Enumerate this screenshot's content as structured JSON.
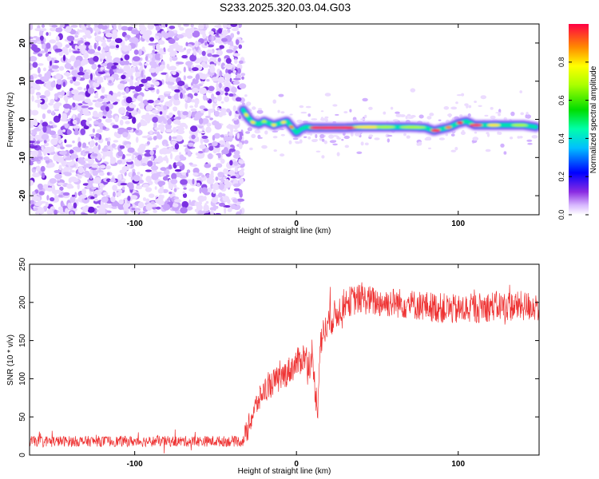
{
  "title": "S233.2025.320.03.04.G03",
  "chart_data": [
    {
      "type": "heatmap",
      "name": "spectrogram",
      "xlabel": "Height of straight line (km)",
      "ylabel": "Frequency (Hz)",
      "xlim": [
        -165,
        150
      ],
      "ylim": [
        -25,
        25
      ],
      "xticks": [
        -100,
        0,
        100
      ],
      "yticks": [
        -20,
        -10,
        0,
        10,
        20
      ],
      "noise_region_x": [
        -165,
        -33
      ],
      "signal_region_x": [
        -33,
        148
      ],
      "signal_track": {
        "x": [
          -33,
          -30,
          -27,
          -23,
          -20,
          -17,
          -14,
          -10,
          -6,
          -3,
          0,
          3,
          6,
          10,
          20,
          30,
          40,
          50,
          60,
          70,
          80,
          85,
          90,
          95,
          100,
          105,
          110,
          120,
          130,
          140,
          148
        ],
        "y": [
          2.5,
          0.5,
          -0.8,
          -1.2,
          -0.5,
          -1.0,
          -1.5,
          -1.0,
          -0.5,
          -2.0,
          -3.5,
          -2.5,
          -2.0,
          -2.2,
          -2.2,
          -2.2,
          -2.0,
          -2.0,
          -2.0,
          -2.0,
          -2.2,
          -3.0,
          -2.5,
          -2.0,
          -1.0,
          -0.5,
          -1.5,
          -1.5,
          -1.5,
          -1.5,
          -2.0
        ]
      },
      "colorbar": {
        "label": "Normalized spectral amplitude",
        "range": [
          0,
          1
        ],
        "ticks": [
          "0.0",
          "0.2",
          "0.4",
          "0.6",
          "0.8"
        ]
      }
    },
    {
      "type": "line",
      "name": "snr",
      "xlabel": "Height of straight line (km)",
      "ylabel": "SNR (10 * v/v)",
      "xlim": [
        -165,
        150
      ],
      "ylim": [
        0,
        250
      ],
      "xticks": [
        -100,
        0,
        100
      ],
      "yticks": [
        0,
        50,
        100,
        150,
        200,
        250
      ],
      "color": "#ee3333",
      "series_envelope": {
        "x": [
          -165,
          -35,
          -33,
          -25,
          -20,
          -15,
          -10,
          -5,
          0,
          5,
          10,
          12,
          13,
          14,
          15,
          20,
          25,
          30,
          40,
          50,
          60,
          80,
          100,
          120,
          140,
          150
        ],
        "y": [
          18,
          18,
          18,
          65,
          85,
          95,
          100,
          110,
          120,
          130,
          115,
          80,
          55,
          120,
          150,
          175,
          185,
          200,
          205,
          200,
          200,
          195,
          190,
          195,
          195,
          195
        ]
      },
      "noise_amplitude": {
        "x": [
          -165,
          -33,
          -32,
          20,
          30,
          150
        ],
        "y": [
          7,
          7,
          15,
          22,
          20,
          20
        ]
      }
    }
  ]
}
